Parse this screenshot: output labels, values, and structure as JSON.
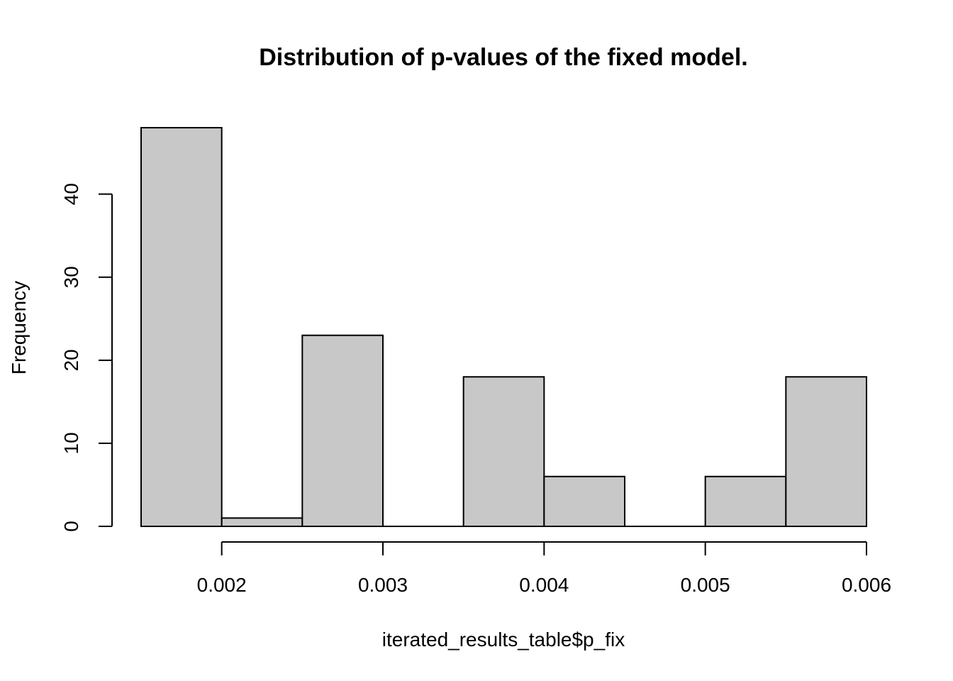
{
  "chart_data": {
    "type": "bar",
    "title": "Distribution of p-values of the fixed model.",
    "xlabel": "iterated_results_table$p_fix",
    "ylabel": "Frequency",
    "bins": [
      {
        "from": 0.0015,
        "to": 0.002,
        "count": 48
      },
      {
        "from": 0.002,
        "to": 0.0025,
        "count": 1
      },
      {
        "from": 0.0025,
        "to": 0.003,
        "count": 23
      },
      {
        "from": 0.003,
        "to": 0.0035,
        "count": 0
      },
      {
        "from": 0.0035,
        "to": 0.004,
        "count": 18
      },
      {
        "from": 0.004,
        "to": 0.0045,
        "count": 6
      },
      {
        "from": 0.0045,
        "to": 0.005,
        "count": 0
      },
      {
        "from": 0.005,
        "to": 0.0055,
        "count": 6
      },
      {
        "from": 0.0055,
        "to": 0.006,
        "count": 18
      }
    ],
    "xlim": [
      0.0015,
      0.006
    ],
    "ylim": [
      0,
      48
    ],
    "x_ticks": [
      0.002,
      0.003,
      0.004,
      0.005,
      0.006
    ],
    "x_tick_labels": [
      "0.002",
      "0.003",
      "0.004",
      "0.005",
      "0.006"
    ],
    "y_ticks": [
      0,
      10,
      20,
      30,
      40
    ],
    "y_tick_labels": [
      "0",
      "10",
      "20",
      "30",
      "40"
    ],
    "grid": false,
    "bar_color": "#c8c8c8"
  }
}
